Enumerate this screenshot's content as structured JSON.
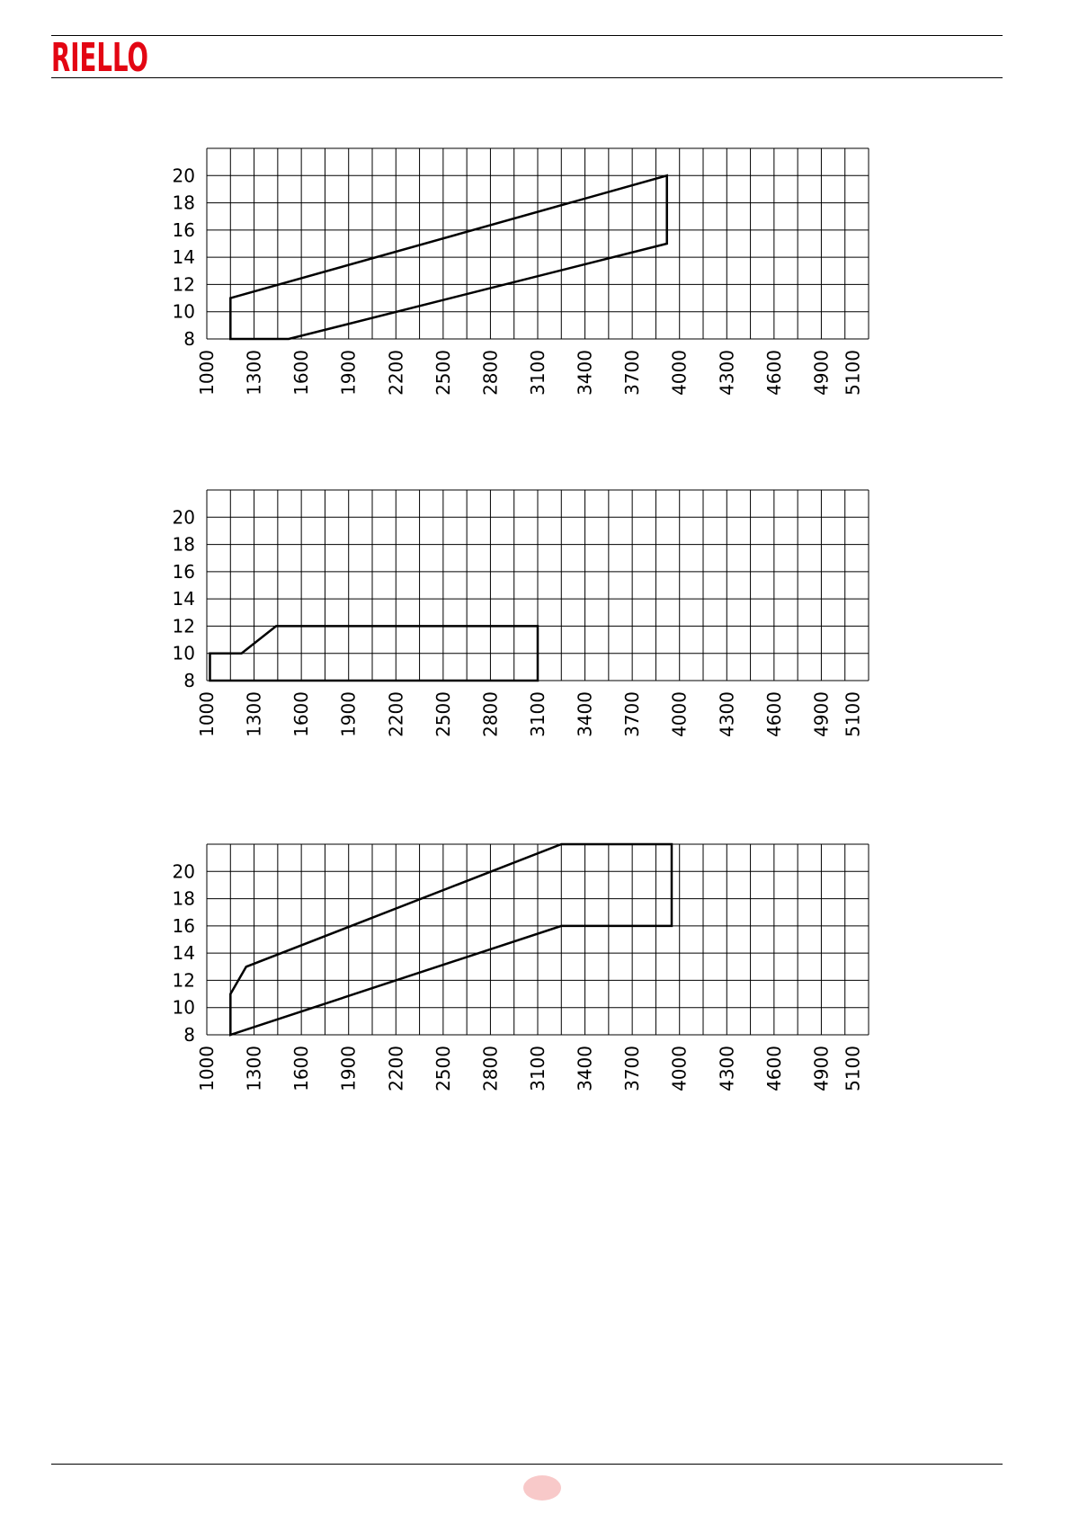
{
  "brand": {
    "name": "RIELLO",
    "color": "#e30613"
  },
  "accent_colors": {
    "page_badge": "#f8c9c9",
    "lines": "#000000"
  },
  "chart_data": [
    {
      "type": "area",
      "x_ticks": [
        1000,
        1300,
        1600,
        1900,
        2200,
        2500,
        2800,
        3100,
        3400,
        3700,
        4000,
        4300,
        4600,
        4900,
        5100
      ],
      "y_ticks": [
        8,
        10,
        12,
        14,
        16,
        18,
        20
      ],
      "xlim": [
        1000,
        5200
      ],
      "ylim": [
        8,
        22
      ],
      "x_grid_step": 150,
      "y_grid_step": 2,
      "grid": true,
      "polygon": [
        {
          "x": 1150,
          "y": 8
        },
        {
          "x": 1150,
          "y": 11
        },
        {
          "x": 3920,
          "y": 20
        },
        {
          "x": 3920,
          "y": 15
        },
        {
          "x": 1520,
          "y": 8
        }
      ]
    },
    {
      "type": "area",
      "x_ticks": [
        1000,
        1300,
        1600,
        1900,
        2200,
        2500,
        2800,
        3100,
        3400,
        3700,
        4000,
        4300,
        4600,
        4900,
        5100
      ],
      "y_ticks": [
        8,
        10,
        12,
        14,
        16,
        18,
        20
      ],
      "xlim": [
        1000,
        5200
      ],
      "ylim": [
        8,
        22
      ],
      "x_grid_step": 150,
      "y_grid_step": 2,
      "grid": true,
      "polygon": [
        {
          "x": 1020,
          "y": 8
        },
        {
          "x": 1020,
          "y": 10
        },
        {
          "x": 1220,
          "y": 10
        },
        {
          "x": 1440,
          "y": 12
        },
        {
          "x": 3100,
          "y": 12
        },
        {
          "x": 3100,
          "y": 8
        }
      ]
    },
    {
      "type": "area",
      "x_ticks": [
        1000,
        1300,
        1600,
        1900,
        2200,
        2500,
        2800,
        3100,
        3400,
        3700,
        4000,
        4300,
        4600,
        4900,
        5100
      ],
      "y_ticks": [
        8,
        10,
        12,
        14,
        16,
        18,
        20
      ],
      "xlim": [
        1000,
        5200
      ],
      "ylim": [
        8,
        22
      ],
      "x_grid_step": 150,
      "y_grid_step": 2,
      "grid": true,
      "polygon": [
        {
          "x": 1150,
          "y": 8
        },
        {
          "x": 1150,
          "y": 11
        },
        {
          "x": 1250,
          "y": 13
        },
        {
          "x": 3250,
          "y": 22
        },
        {
          "x": 3950,
          "y": 22
        },
        {
          "x": 3950,
          "y": 16
        },
        {
          "x": 3250,
          "y": 16
        }
      ]
    }
  ]
}
